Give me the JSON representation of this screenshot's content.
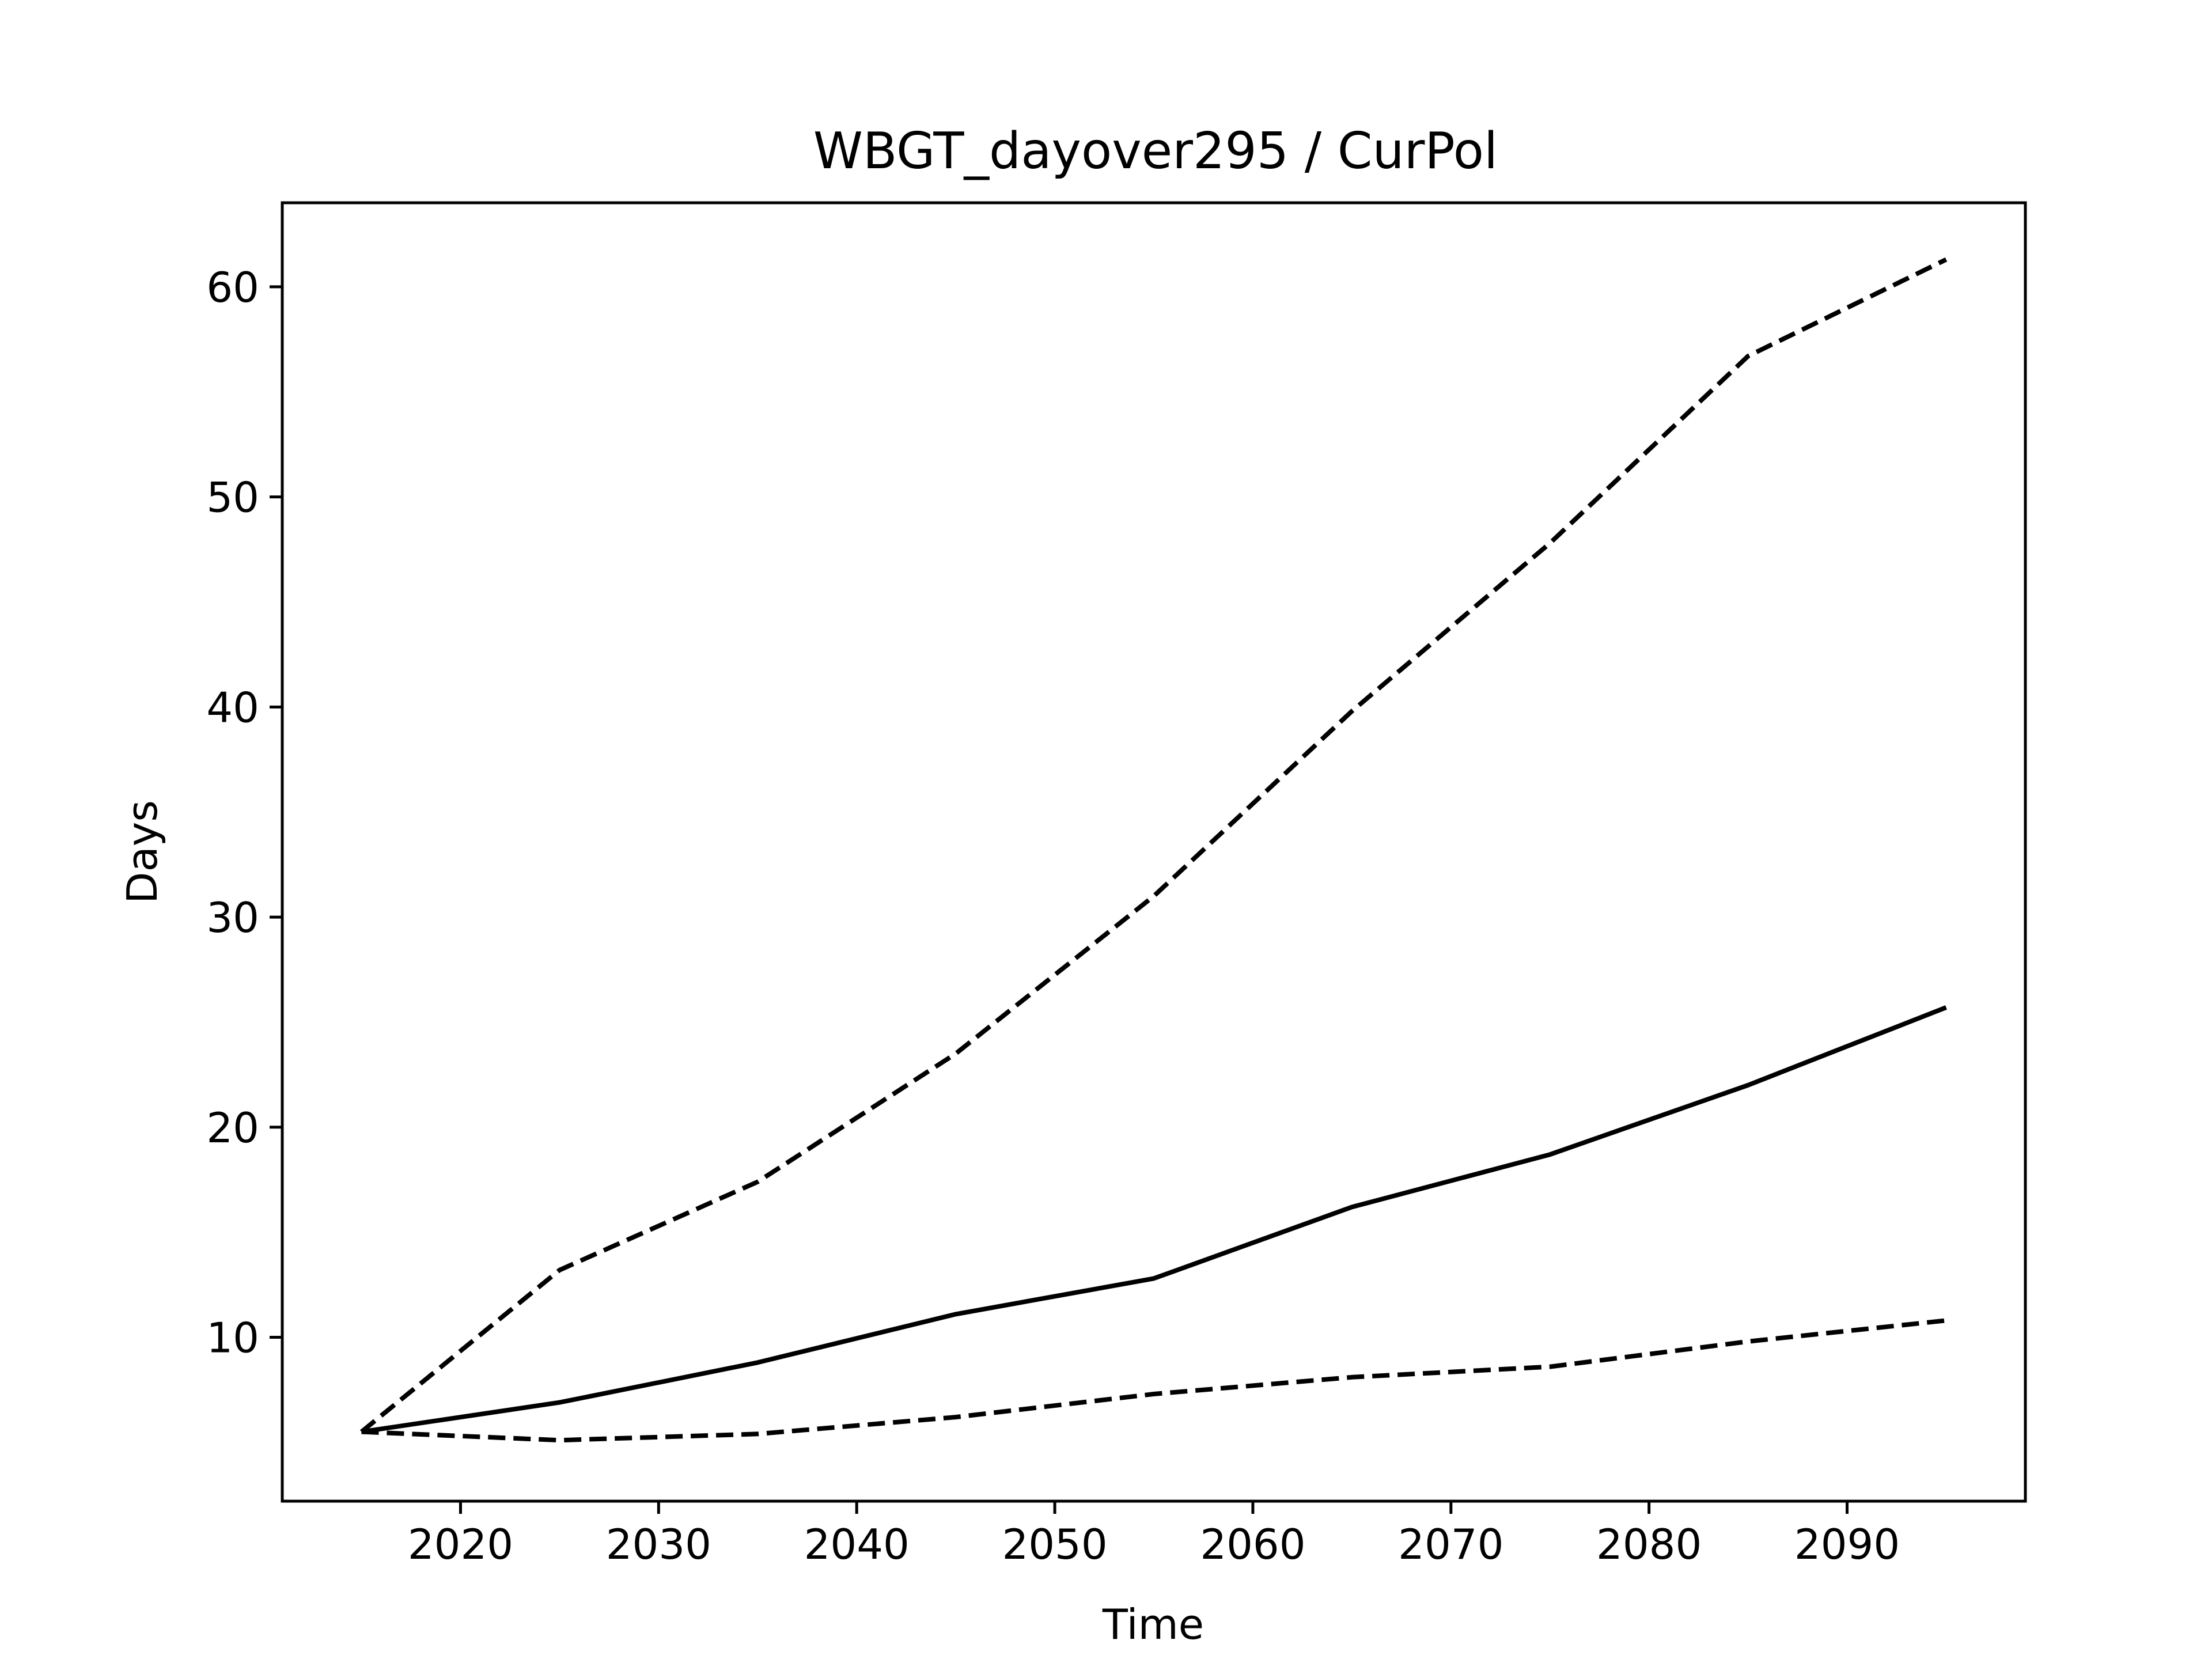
{
  "chart_data": {
    "type": "line",
    "title": "WBGT_dayover295 / CurPol",
    "xlabel": "Time",
    "ylabel": "Days",
    "xlim": [
      2011,
      2099
    ],
    "ylim": [
      2.2,
      64.0
    ],
    "xticks": [
      2020,
      2030,
      2040,
      2050,
      2060,
      2070,
      2080,
      2090
    ],
    "yticks": [
      10,
      20,
      30,
      40,
      50,
      60
    ],
    "grid": false,
    "legend": "none",
    "x": [
      2015,
      2025,
      2035,
      2045,
      2055,
      2065,
      2075,
      2085,
      2095
    ],
    "series": [
      {
        "style": "dashed",
        "color": "#000000",
        "values": [
          5.5,
          13.2,
          17.4,
          23.5,
          31.0,
          39.8,
          47.8,
          56.7,
          61.3
        ]
      },
      {
        "style": "solid",
        "color": "#000000",
        "values": [
          5.5,
          6.9,
          8.8,
          11.1,
          12.8,
          16.2,
          18.7,
          22.0,
          25.7
        ]
      },
      {
        "style": "dashed",
        "color": "#000000",
        "values": [
          5.5,
          5.1,
          5.4,
          6.2,
          7.3,
          8.1,
          8.6,
          9.8,
          10.8
        ]
      }
    ]
  }
}
